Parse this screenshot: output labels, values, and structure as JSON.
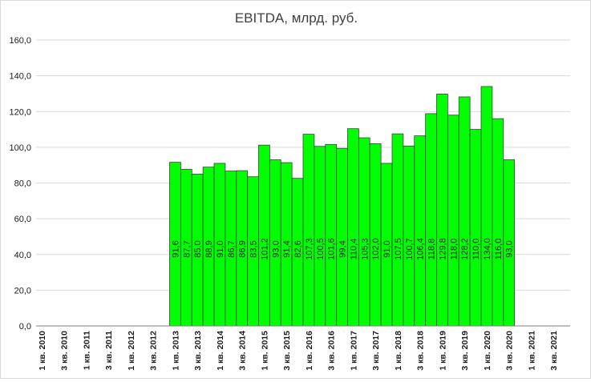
{
  "chart_data": {
    "type": "bar",
    "title": "EBITDA, млрд. руб.",
    "xlabel": "",
    "ylabel": "",
    "ylim": [
      0,
      160
    ],
    "yticks": [
      "0,0",
      "20,0",
      "40,0",
      "60,0",
      "80,0",
      "100,0",
      "120,0",
      "140,0",
      "160,0"
    ],
    "grid": true,
    "legend": "none",
    "colors": {
      "bar_fill": "#00ff00",
      "bar_stroke": "#404040",
      "grid": "#d9d9d9",
      "axis": "#808080"
    },
    "categories": [
      "1 кв. 2010",
      "2 кв. 2010",
      "3 кв. 2010",
      "4 кв. 2010",
      "1 кв. 2011",
      "2 кв. 2011",
      "3 кв. 2011",
      "4 кв. 2011",
      "1 кв. 2012",
      "2 кв. 2012",
      "3 кв. 2012",
      "4 кв. 2012",
      "1 кв. 2013",
      "2 кв. 2013",
      "3 кв. 2013",
      "4 кв. 2013",
      "1 кв. 2014",
      "2 кв. 2014",
      "3 кв. 2014",
      "4 кв. 2014",
      "1 кв. 2015",
      "2 кв. 2015",
      "3 кв. 2015",
      "4 кв. 2015",
      "1 кв. 2016",
      "2 кв. 2016",
      "3 кв. 2016",
      "4 кв. 2016",
      "1 кв. 2017",
      "2 кв. 2017",
      "3 кв. 2017",
      "4 кв. 2017",
      "1 кв. 2018",
      "2 кв. 2018",
      "3 кв. 2018",
      "4 кв. 2018",
      "1 кв. 2019",
      "2 кв. 2019",
      "3 кв. 2019",
      "4 кв. 2019",
      "1 кв. 2020",
      "2 кв. 2020",
      "3 кв. 2020",
      "4 кв. 2020",
      "1 кв. 2021",
      "2 кв. 2021",
      "3 кв. 2021",
      "4 кв. 2021"
    ],
    "tick_labels": [
      "1 кв. 2010",
      "",
      "3 кв. 2010",
      "",
      "1 кв. 2011",
      "",
      "3 кв. 2011",
      "",
      "1 кв. 2012",
      "",
      "3 кв. 2012",
      "",
      "1 кв. 2013",
      "",
      "3 кв. 2013",
      "",
      "1 кв. 2014",
      "",
      "3 кв. 2014",
      "",
      "1 кв. 2015",
      "",
      "3 кв. 2015",
      "",
      "1 кв. 2016",
      "",
      "3 кв. 2016",
      "",
      "1 кв. 2017",
      "",
      "3 кв. 2017",
      "",
      "1 кв. 2018",
      "",
      "3 кв. 2018",
      "",
      "1 кв. 2019",
      "",
      "3 кв. 2019",
      "",
      "1 кв. 2020",
      "",
      "3 кв. 2020",
      "",
      "1 кв. 2021",
      "",
      "3 кв. 2021",
      ""
    ],
    "values": [
      null,
      null,
      null,
      null,
      null,
      null,
      null,
      null,
      null,
      null,
      null,
      null,
      91.6,
      87.7,
      85.0,
      88.9,
      91.0,
      86.7,
      86.9,
      83.5,
      101.2,
      93.0,
      91.4,
      82.6,
      107.3,
      100.5,
      101.6,
      99.4,
      110.4,
      105.3,
      102.0,
      91.0,
      107.5,
      100.7,
      106.4,
      118.8,
      129.8,
      118.0,
      128.2,
      110.0,
      134.0,
      116.0,
      93.0,
      null,
      null,
      null,
      null,
      null
    ],
    "data_labels": [
      "",
      "",
      "",
      "",
      "",
      "",
      "",
      "",
      "",
      "",
      "",
      "",
      "91,6",
      "87,7",
      "85,0",
      "88,9",
      "91,0",
      "86,7",
      "86,9",
      "83,5",
      "101,2",
      "93,0",
      "91,4",
      "82,6",
      "107,3",
      "100,5",
      "101,6",
      "99,4",
      "110,4",
      "105,3",
      "102,0",
      "91,0",
      "107,5",
      "100,7",
      "106,4",
      "118,8",
      "129,8",
      "118,0",
      "128,2",
      "110,0",
      "134,0",
      "116,0",
      "93,0",
      "",
      "",
      "",
      "",
      ""
    ]
  }
}
